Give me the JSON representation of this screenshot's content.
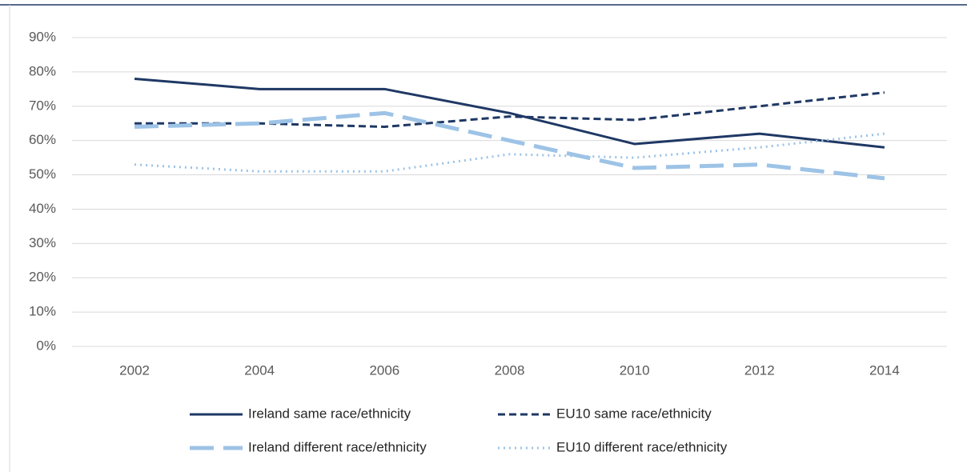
{
  "chart_data": {
    "type": "line",
    "categories": [
      "2002",
      "2004",
      "2006",
      "2008",
      "2010",
      "2012",
      "2014"
    ],
    "series": [
      {
        "name": "Ireland same race/ethnicity",
        "color": "#1f3864",
        "values": [
          78,
          75,
          75,
          68,
          59,
          62,
          58
        ]
      },
      {
        "name": "EU10 same race/ethnicity",
        "color": "#1f3864",
        "values": [
          65,
          65,
          64,
          67,
          66,
          70,
          74
        ]
      },
      {
        "name": "Ireland different race/ethnicity",
        "color": "#9dc3e6",
        "values": [
          64,
          65,
          68,
          60,
          52,
          53,
          49
        ]
      },
      {
        "name": "EU10 different race/ethnicity",
        "color": "#9dc3e6",
        "values": [
          53,
          51,
          51,
          56,
          55,
          58,
          62
        ]
      }
    ],
    "ylim": [
      0,
      90
    ],
    "yticks": [
      {
        "value": 0,
        "label": "0%"
      },
      {
        "value": 10,
        "label": "10%"
      },
      {
        "value": 20,
        "label": "20%"
      },
      {
        "value": 30,
        "label": "30%"
      },
      {
        "value": 40,
        "label": "40%"
      },
      {
        "value": 50,
        "label": "50%"
      },
      {
        "value": 60,
        "label": "60%"
      },
      {
        "value": 70,
        "label": "70%"
      },
      {
        "value": 80,
        "label": "80%"
      },
      {
        "value": 90,
        "label": "90%"
      }
    ],
    "grid": true
  }
}
